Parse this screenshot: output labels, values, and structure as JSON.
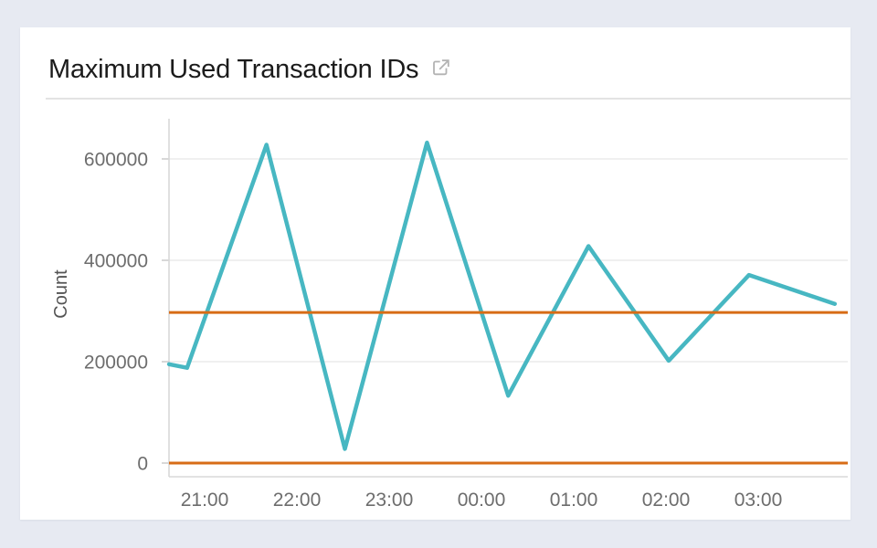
{
  "page": {
    "background_color": "#e7eaf2",
    "card_color": "#ffffff"
  },
  "card": {
    "title": "Maximum Used Transaction IDs",
    "external_link_icon": "external-link"
  },
  "chart_data": {
    "type": "line",
    "title": "Maximum Used Transaction IDs",
    "xlabel": "",
    "ylabel": "Count",
    "grid": "horizontal",
    "legend_position": "none",
    "ylim": [
      -27000,
      660000
    ],
    "xlim_hours_from_2100": [
      -0.385,
      6.97
    ],
    "y_ticks": [
      {
        "value": 0,
        "label": "0"
      },
      {
        "value": 200000,
        "label": "200000"
      },
      {
        "value": 400000,
        "label": "400000"
      },
      {
        "value": 600000,
        "label": "600000"
      }
    ],
    "x_ticks": [
      {
        "hours_from_2100": 0,
        "label": "21:00"
      },
      {
        "hours_from_2100": 1,
        "label": "22:00"
      },
      {
        "hours_from_2100": 2,
        "label": "23:00"
      },
      {
        "hours_from_2100": 3,
        "label": "00:00"
      },
      {
        "hours_from_2100": 4,
        "label": "01:00"
      },
      {
        "hours_from_2100": 5,
        "label": "02:00"
      },
      {
        "hours_from_2100": 6,
        "label": "03:00"
      }
    ],
    "series": [
      {
        "name": "Maximum Used Transaction IDs",
        "color": "#47b7c2",
        "stroke_width": 4.5,
        "points": [
          {
            "time": "20:37",
            "hours_from_2100": -0.385,
            "value": 195000
          },
          {
            "time": "20:49",
            "hours_from_2100": -0.19,
            "value": 188000
          },
          {
            "time": "21:40",
            "hours_from_2100": 0.67,
            "value": 628000
          },
          {
            "time": "22:31",
            "hours_from_2100": 1.52,
            "value": 28000
          },
          {
            "time": "23:24",
            "hours_from_2100": 2.41,
            "value": 632000
          },
          {
            "time": "00:17",
            "hours_from_2100": 3.29,
            "value": 133000
          },
          {
            "time": "01:09",
            "hours_from_2100": 4.16,
            "value": 428000
          },
          {
            "time": "02:02",
            "hours_from_2100": 5.03,
            "value": 202000
          },
          {
            "time": "02:54",
            "hours_from_2100": 5.9,
            "value": 371000
          },
          {
            "time": "03:50",
            "hours_from_2100": 6.83,
            "value": 314000
          }
        ]
      }
    ],
    "reference_lines": [
      {
        "name": "upper-reference-line",
        "value": 297000,
        "color": "#d76c16",
        "stroke_width": 3
      },
      {
        "name": "baseline-reference-line",
        "value": 0,
        "color": "#d76c16",
        "stroke_width": 3
      }
    ],
    "colors": {
      "series": "#47b7c2",
      "reference": "#d76c16",
      "gridline": "#ececec",
      "axis": "#d8d8d8",
      "tick": "#cfcfcf",
      "tick_label": "#6d6d6d",
      "axis_label": "#545454"
    }
  }
}
